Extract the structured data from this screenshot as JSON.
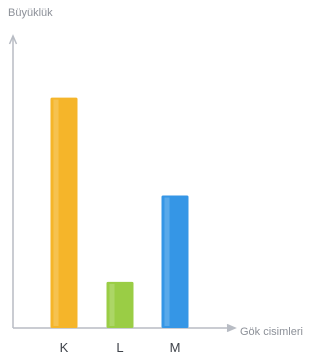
{
  "chart_data": {
    "type": "bar",
    "title": "",
    "ylabel": "Büyüklük",
    "xlabel": "Gök cisimleri",
    "categories": [
      "K",
      "L",
      "M"
    ],
    "values": [
      8,
      1.6,
      4.6
    ],
    "ylim": [
      0,
      10
    ],
    "grid": false,
    "legend": "none",
    "colors": [
      "#F5B52A",
      "#9ACD45",
      "#3596E6"
    ],
    "axis_color": "#B8BCC4"
  }
}
